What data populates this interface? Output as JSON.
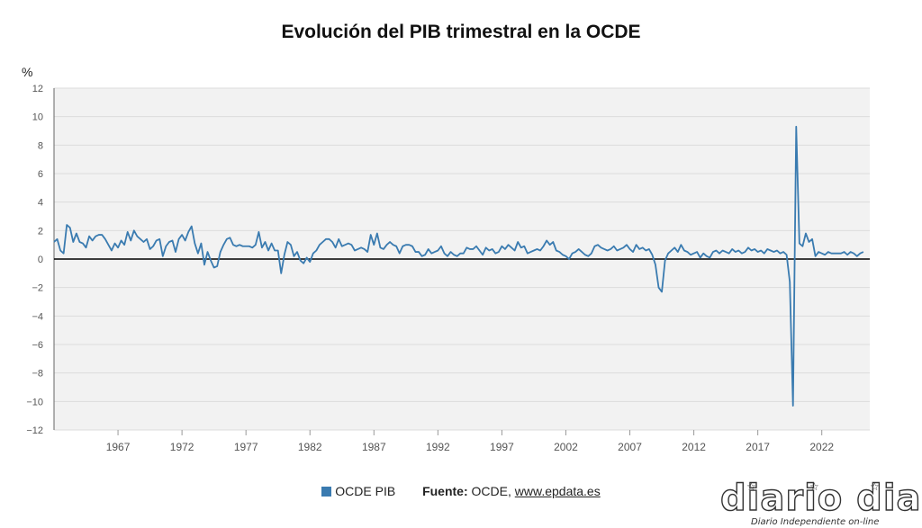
{
  "chart_data": {
    "type": "line",
    "title": "Evolución del PIB trimestral en la OCDE",
    "ylabel": "%",
    "ylim": [
      -12,
      12
    ],
    "yticks": [
      12,
      10,
      8,
      6,
      4,
      2,
      0,
      -2,
      -4,
      -6,
      -8,
      -10,
      -12
    ],
    "xlim": [
      1962.0,
      2025.75
    ],
    "xticks": [
      "1967",
      "1972",
      "1977",
      "1982",
      "1987",
      "1992",
      "1997",
      "2002",
      "2007",
      "2012",
      "2017",
      "2022"
    ],
    "grid": true,
    "legend_position": "bottom",
    "series": [
      {
        "name": "OCDE PIB",
        "color": "#3a7bb0",
        "x_start": 1962.0,
        "x_step": 0.25,
        "values": [
          1.2,
          1.4,
          0.6,
          0.4,
          2.4,
          2.2,
          1.2,
          1.8,
          1.2,
          1.1,
          0.8,
          1.6,
          1.3,
          1.6,
          1.7,
          1.7,
          1.4,
          1.0,
          0.6,
          1.1,
          0.8,
          1.3,
          1.0,
          1.9,
          1.3,
          2.0,
          1.6,
          1.4,
          1.2,
          1.4,
          0.7,
          0.9,
          1.3,
          1.4,
          0.2,
          0.9,
          1.2,
          1.3,
          0.5,
          1.4,
          1.7,
          1.3,
          1.9,
          2.3,
          1.1,
          0.4,
          1.1,
          -0.4,
          0.5,
          -0.1,
          -0.6,
          -0.5,
          0.5,
          1.0,
          1.4,
          1.5,
          1.0,
          0.9,
          1.0,
          0.9,
          0.9,
          0.9,
          0.8,
          1.0,
          1.9,
          0.8,
          1.2,
          0.6,
          1.1,
          0.6,
          0.6,
          -1.0,
          0.3,
          1.2,
          1.0,
          0.2,
          0.5,
          -0.1,
          -0.3,
          0.1,
          -0.2,
          0.4,
          0.6,
          1.0,
          1.2,
          1.4,
          1.4,
          1.2,
          0.8,
          1.4,
          0.9,
          1.0,
          1.1,
          1.0,
          0.6,
          0.7,
          0.8,
          0.7,
          0.5,
          1.7,
          1.0,
          1.8,
          0.8,
          0.7,
          1.0,
          1.2,
          1.0,
          0.9,
          0.4,
          0.9,
          1.0,
          1.0,
          0.9,
          0.5,
          0.5,
          0.2,
          0.3,
          0.7,
          0.4,
          0.5,
          0.6,
          0.9,
          0.4,
          0.2,
          0.5,
          0.3,
          0.2,
          0.4,
          0.4,
          0.8,
          0.7,
          0.7,
          0.9,
          0.6,
          0.3,
          0.8,
          0.6,
          0.7,
          0.4,
          0.5,
          0.9,
          0.7,
          1.0,
          0.8,
          0.6,
          1.2,
          0.8,
          0.9,
          0.4,
          0.5,
          0.6,
          0.7,
          0.6,
          0.9,
          1.3,
          1.0,
          1.2,
          0.6,
          0.5,
          0.3,
          0.2,
          0.0,
          0.4,
          0.5,
          0.7,
          0.5,
          0.3,
          0.2,
          0.4,
          0.9,
          1.0,
          0.8,
          0.7,
          0.6,
          0.7,
          0.9,
          0.6,
          0.7,
          0.8,
          1.0,
          0.7,
          0.5,
          1.0,
          0.7,
          0.8,
          0.6,
          0.7,
          0.3,
          -0.4,
          -2.0,
          -2.3,
          -0.1,
          0.4,
          0.6,
          0.8,
          0.5,
          1.0,
          0.6,
          0.5,
          0.3,
          0.4,
          0.5,
          0.1,
          0.4,
          0.2,
          0.1,
          0.5,
          0.6,
          0.4,
          0.6,
          0.5,
          0.4,
          0.7,
          0.5,
          0.6,
          0.4,
          0.5,
          0.8,
          0.6,
          0.7,
          0.5,
          0.6,
          0.4,
          0.7,
          0.6,
          0.5,
          0.6,
          0.4,
          0.5,
          0.3,
          -1.6,
          -10.3,
          9.3,
          1.1,
          0.9,
          1.8,
          1.2,
          1.4,
          0.2,
          0.5,
          0.4,
          0.3,
          0.5,
          0.4,
          0.4,
          0.4,
          0.4,
          0.5,
          0.3,
          0.5,
          0.4,
          0.2,
          0.4,
          0.5
        ]
      }
    ]
  },
  "legend": {
    "series_label": "OCDE PIB",
    "source_label": "Fuente:",
    "source_text": "OCDE,",
    "source_link": "www.epdata.es"
  },
  "logo": {
    "wordmark": "diario dia",
    "tagline": "Diario Independiente on-line"
  },
  "colors": {
    "plot_background": "#f2f2f2",
    "grid": "#dcdcdc",
    "zero_line": "#000000",
    "series": "#3a7bb0"
  }
}
